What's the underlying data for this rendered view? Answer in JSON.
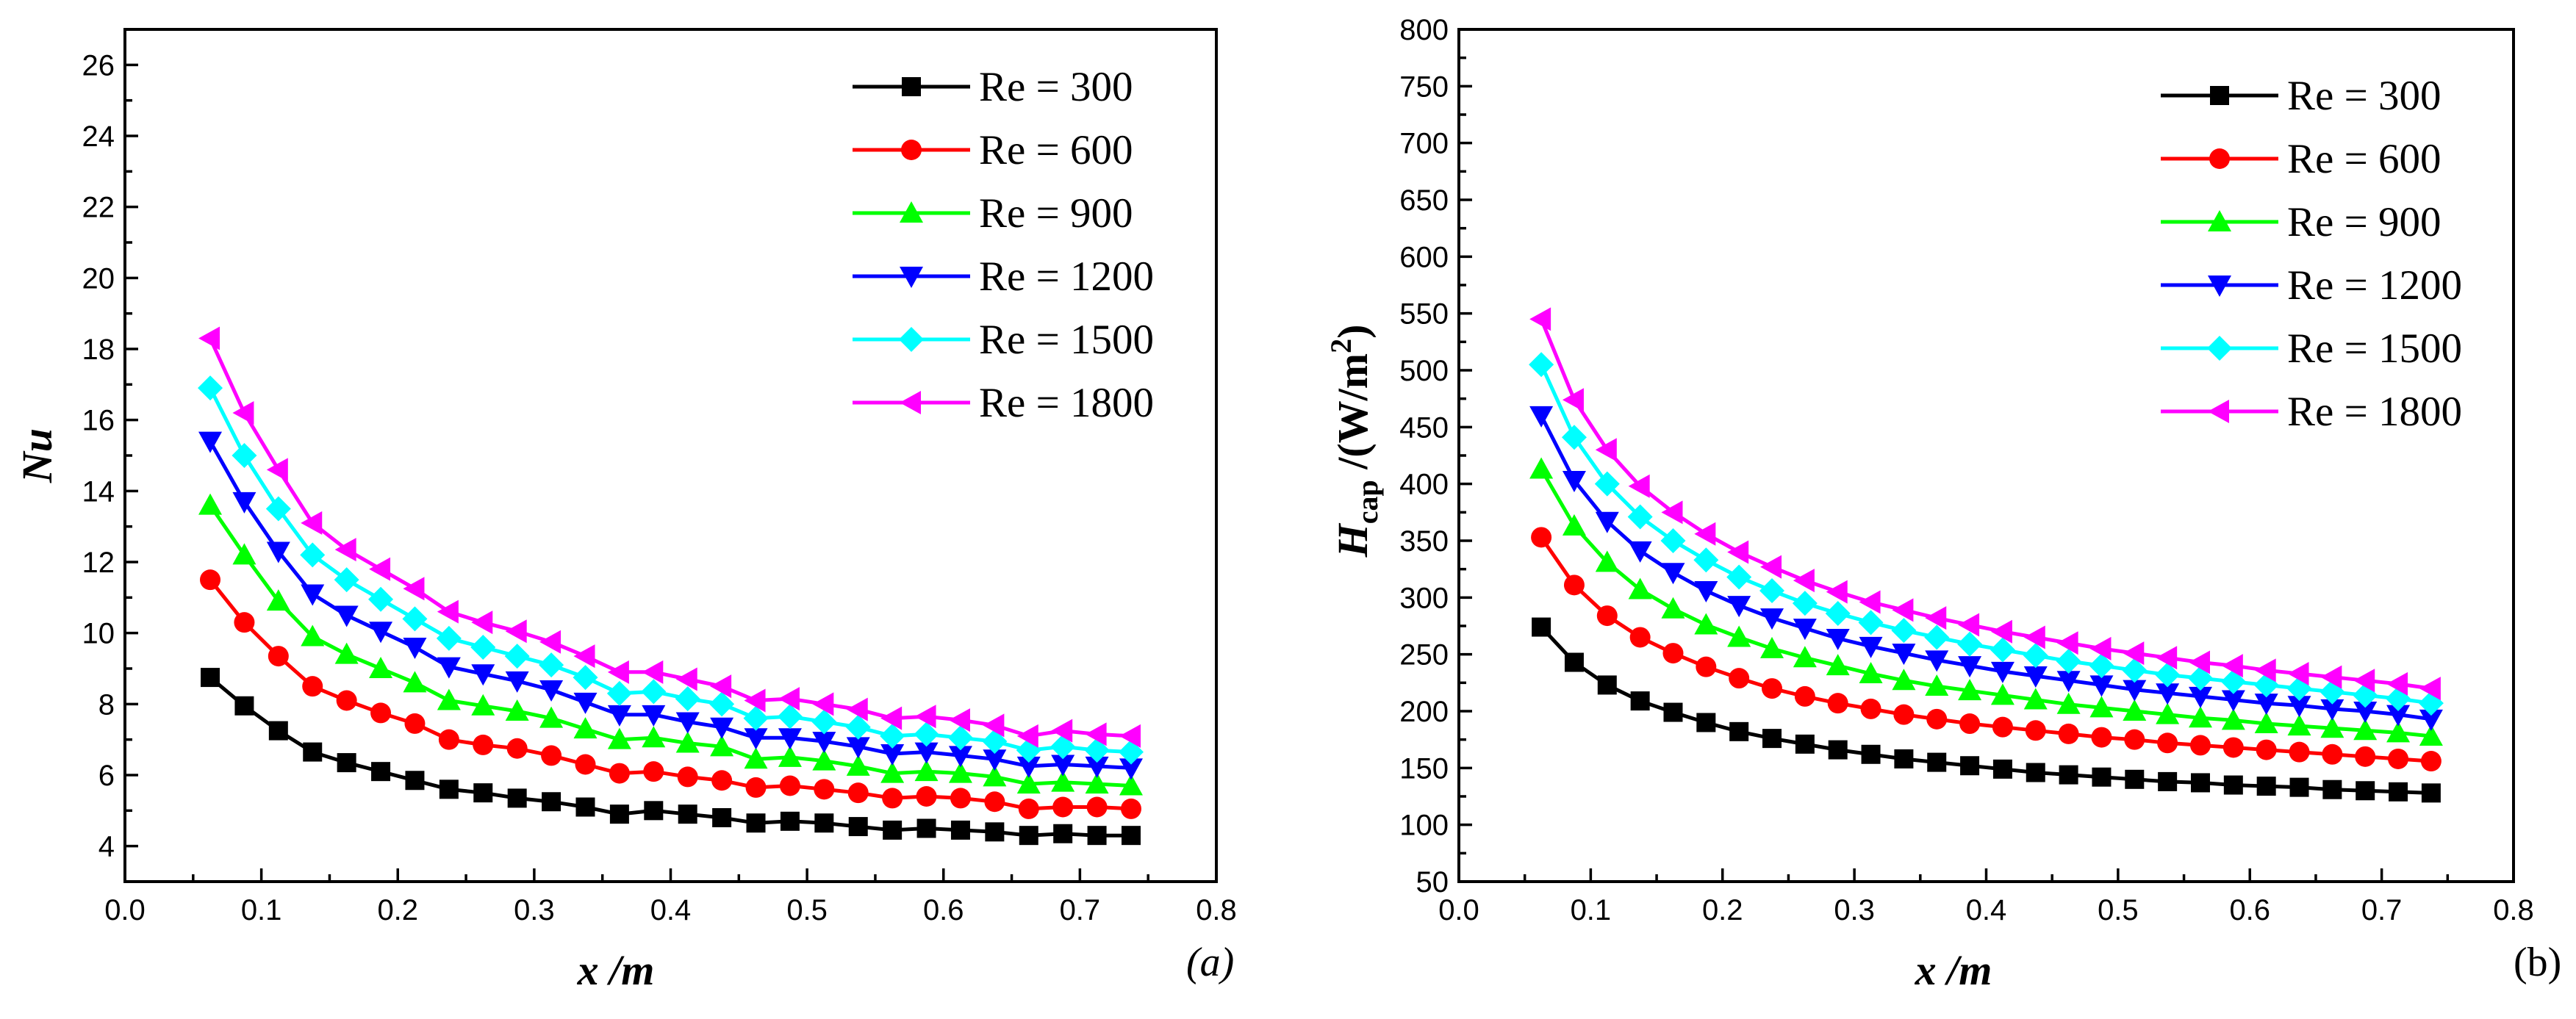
{
  "chart_data": [
    {
      "id": "a",
      "type": "line",
      "panel_label": "(a)",
      "ylabel": "Nu",
      "xlabel": "x /m",
      "xlim": [
        0.0,
        0.8
      ],
      "ylim": [
        3,
        27
      ],
      "xticks": [
        "0.0",
        "0.1",
        "0.2",
        "0.3",
        "0.4",
        "0.5",
        "0.6",
        "0.7",
        "0.8"
      ],
      "yticks": [
        "4",
        "6",
        "8",
        "10",
        "12",
        "14",
        "16",
        "18",
        "20",
        "22",
        "24",
        "26"
      ],
      "legend": "top-right",
      "x": [
        0.0625,
        0.0875,
        0.1125,
        0.1375,
        0.1625,
        0.1875,
        0.2125,
        0.2375,
        0.2625,
        0.2875,
        0.3125,
        0.3375,
        0.3625,
        0.3875,
        0.4125,
        0.4375,
        0.4625,
        0.4875,
        0.5125,
        0.5375,
        0.5625,
        0.5875,
        0.6125,
        0.6375,
        0.6625,
        0.6875,
        0.7125,
        0.7375
      ],
      "series": [
        {
          "name": "Re = 300",
          "color": "#000000",
          "marker": "square",
          "values": [
            8.75,
            7.95,
            7.25,
            6.65,
            6.35,
            6.1,
            5.85,
            5.6,
            5.5,
            5.35,
            5.25,
            5.1,
            4.9,
            5.0,
            4.9,
            4.8,
            4.65,
            4.7,
            4.65,
            4.55,
            4.45,
            4.5,
            4.45,
            4.4,
            4.3,
            4.35,
            4.3,
            4.3
          ]
        },
        {
          "name": "Re = 600",
          "color": "#ff0000",
          "marker": "circle",
          "values": [
            11.5,
            10.3,
            9.35,
            8.5,
            8.1,
            7.75,
            7.45,
            7.0,
            6.85,
            6.75,
            6.55,
            6.3,
            6.05,
            6.1,
            5.95,
            5.85,
            5.65,
            5.7,
            5.6,
            5.5,
            5.35,
            5.4,
            5.35,
            5.25,
            5.05,
            5.1,
            5.1,
            5.05
          ]
        },
        {
          "name": "Re = 900",
          "color": "#00ff00",
          "marker": "triangle-up",
          "values": [
            13.6,
            12.2,
            10.9,
            9.9,
            9.4,
            9.0,
            8.6,
            8.1,
            7.95,
            7.8,
            7.6,
            7.3,
            7.0,
            7.05,
            6.9,
            6.8,
            6.45,
            6.5,
            6.4,
            6.25,
            6.05,
            6.1,
            6.05,
            5.95,
            5.75,
            5.8,
            5.75,
            5.7
          ]
        },
        {
          "name": "Re = 1200",
          "color": "#0000ff",
          "marker": "triangle-down",
          "values": [
            15.4,
            13.7,
            12.3,
            11.1,
            10.5,
            10.05,
            9.6,
            9.05,
            8.85,
            8.65,
            8.4,
            8.05,
            7.7,
            7.7,
            7.5,
            7.35,
            7.05,
            7.05,
            6.95,
            6.8,
            6.6,
            6.65,
            6.55,
            6.45,
            6.25,
            6.3,
            6.25,
            6.2
          ]
        },
        {
          "name": "Re = 1500",
          "color": "#00ffff",
          "marker": "diamond",
          "values": [
            16.9,
            15.0,
            13.5,
            12.2,
            11.5,
            10.95,
            10.4,
            9.85,
            9.6,
            9.35,
            9.1,
            8.75,
            8.3,
            8.35,
            8.15,
            8.0,
            7.6,
            7.65,
            7.5,
            7.35,
            7.1,
            7.15,
            7.05,
            6.95,
            6.7,
            6.8,
            6.7,
            6.65
          ]
        },
        {
          "name": "Re = 1800",
          "color": "#ff00ff",
          "marker": "triangle-left",
          "values": [
            18.3,
            16.2,
            14.6,
            13.1,
            12.35,
            11.8,
            11.25,
            10.6,
            10.3,
            10.05,
            9.75,
            9.35,
            8.9,
            8.9,
            8.7,
            8.5,
            8.1,
            8.15,
            8.0,
            7.85,
            7.6,
            7.65,
            7.55,
            7.4,
            7.1,
            7.25,
            7.15,
            7.1
          ]
        }
      ]
    },
    {
      "id": "b",
      "type": "line",
      "panel_label": "(b)",
      "ylabel_main": "H",
      "ylabel_sub": "cap",
      "ylabel_unit": " /(W/m",
      "ylabel_sup": "2",
      "ylabel_close": ")",
      "xlabel": "x /m",
      "xlim": [
        0.0,
        0.8
      ],
      "ylim": [
        50,
        800
      ],
      "xticks": [
        "0.0",
        "0.1",
        "0.2",
        "0.3",
        "0.4",
        "0.5",
        "0.6",
        "0.7",
        "0.8"
      ],
      "yticks": [
        "50",
        "100",
        "150",
        "200",
        "250",
        "300",
        "350",
        "400",
        "450",
        "500",
        "550",
        "600",
        "650",
        "700",
        "750",
        "800"
      ],
      "legend": "top-right",
      "x": [
        0.0625,
        0.0875,
        0.1125,
        0.1375,
        0.1625,
        0.1875,
        0.2125,
        0.2375,
        0.2625,
        0.2875,
        0.3125,
        0.3375,
        0.3625,
        0.3875,
        0.4125,
        0.4375,
        0.4625,
        0.4875,
        0.5125,
        0.5375,
        0.5625,
        0.5875,
        0.6125,
        0.6375,
        0.6625,
        0.6875,
        0.7125,
        0.7375
      ],
      "series": [
        {
          "name": "Re = 300",
          "color": "#000000",
          "marker": "square",
          "values": [
            274,
            243,
            223,
            209,
            199,
            190,
            182,
            176,
            171,
            166,
            162,
            158,
            155,
            152,
            149,
            146,
            144,
            142,
            140,
            138,
            137,
            135,
            134,
            133,
            131,
            130,
            129,
            128
          ]
        },
        {
          "name": "Re = 600",
          "color": "#ff0000",
          "marker": "circle",
          "values": [
            353,
            311,
            284,
            265,
            251,
            239,
            229,
            220,
            213,
            207,
            202,
            197,
            193,
            189,
            186,
            183,
            180,
            177,
            175,
            172,
            170,
            168,
            166,
            164,
            162,
            160,
            158,
            156
          ]
        },
        {
          "name": "Re = 900",
          "color": "#00ff00",
          "marker": "triangle-up",
          "values": [
            413,
            363,
            331,
            307,
            290,
            276,
            265,
            255,
            247,
            240,
            233,
            227,
            222,
            218,
            214,
            210,
            206,
            203,
            200,
            197,
            194,
            192,
            189,
            187,
            185,
            183,
            181,
            178
          ]
        },
        {
          "name": "Re = 1200",
          "color": "#0000ff",
          "marker": "triangle-down",
          "values": [
            460,
            403,
            367,
            341,
            322,
            306,
            293,
            282,
            273,
            264,
            257,
            251,
            245,
            240,
            235,
            231,
            227,
            223,
            219,
            216,
            213,
            210,
            207,
            205,
            202,
            200,
            197,
            193
          ]
        },
        {
          "name": "Re = 1500",
          "color": "#00ffff",
          "marker": "diamond",
          "values": [
            505,
            441,
            400,
            371,
            350,
            333,
            318,
            306,
            295,
            286,
            278,
            271,
            265,
            259,
            254,
            249,
            244,
            240,
            236,
            232,
            229,
            226,
            223,
            220,
            217,
            214,
            211,
            207
          ]
        },
        {
          "name": "Re = 1800",
          "color": "#ff00ff",
          "marker": "triangle-left",
          "values": [
            545,
            474,
            430,
            398,
            375,
            356,
            340,
            327,
            315,
            305,
            296,
            289,
            282,
            276,
            270,
            265,
            260,
            255,
            251,
            247,
            243,
            240,
            236,
            233,
            230,
            227,
            224,
            220
          ]
        }
      ]
    }
  ]
}
